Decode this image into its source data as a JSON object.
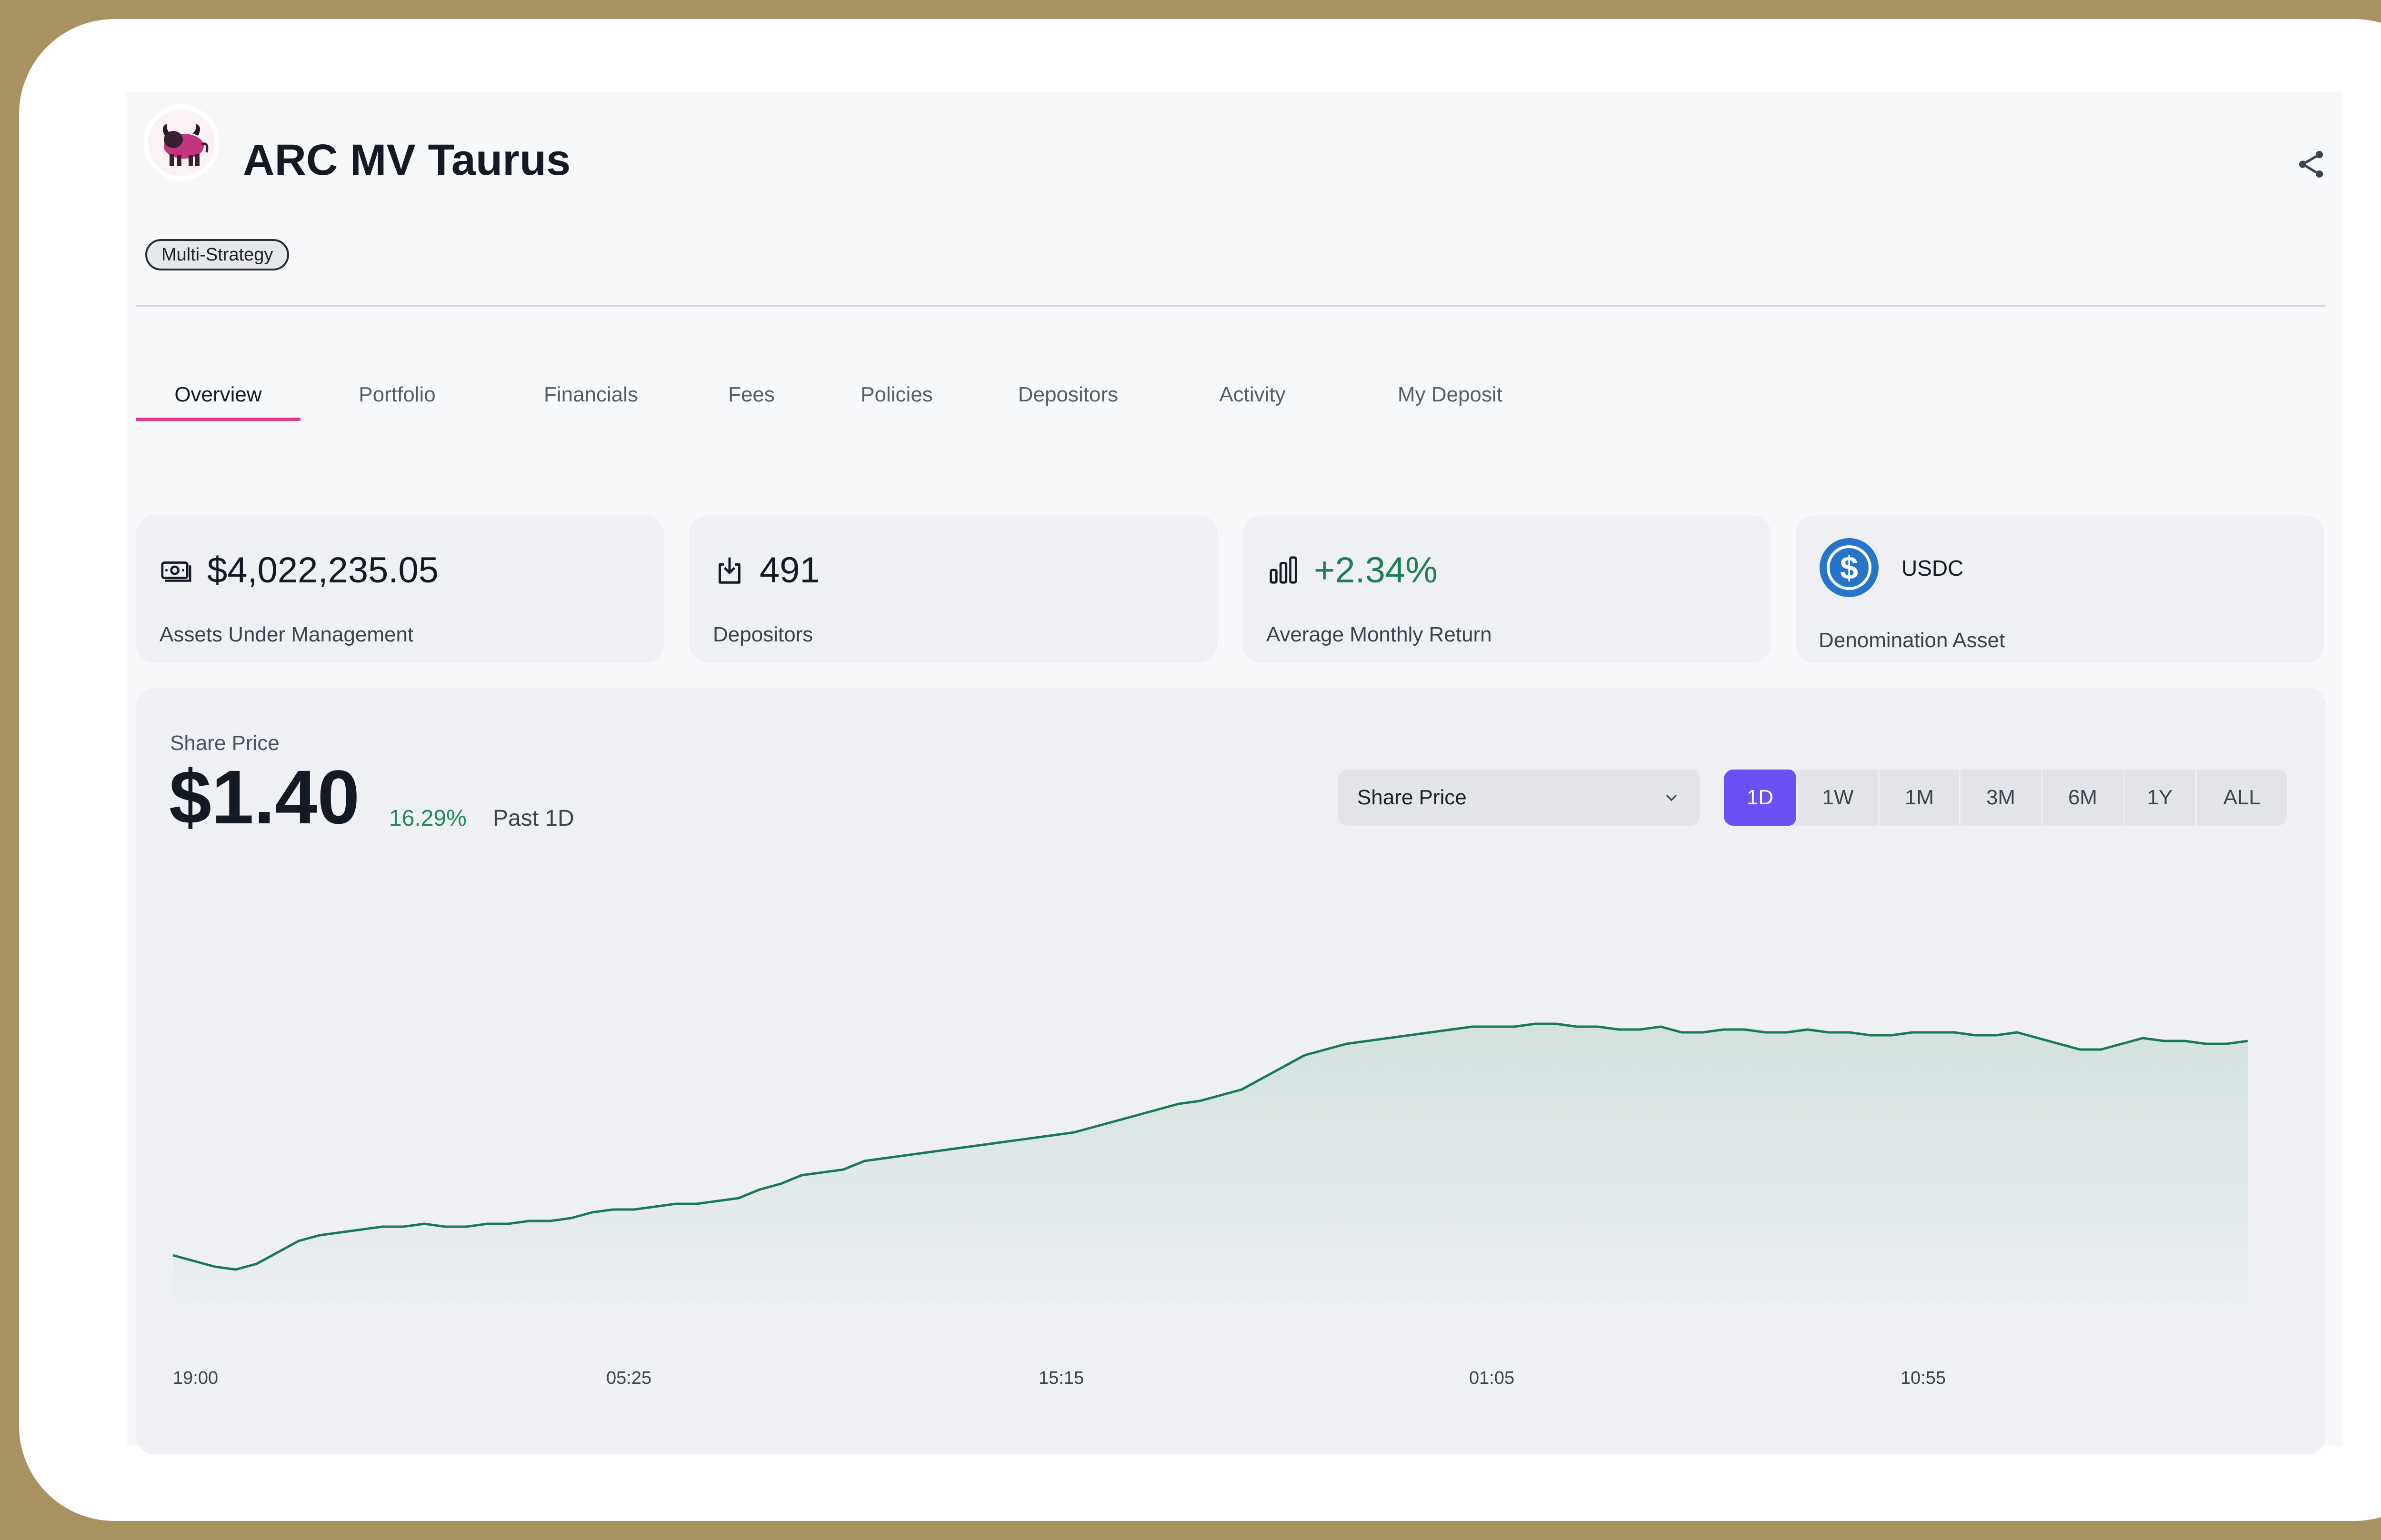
{
  "fund": {
    "name": "ARC MV Taurus",
    "tag": "Multi-Strategy",
    "logo_icon": "bull-logo-icon",
    "share_icon": "share-icon"
  },
  "tabs": [
    {
      "label": "Overview",
      "active": true
    },
    {
      "label": "Portfolio"
    },
    {
      "label": "Financials"
    },
    {
      "label": "Fees"
    },
    {
      "label": "Policies"
    },
    {
      "label": "Depositors"
    },
    {
      "label": "Activity"
    },
    {
      "label": "My Deposit"
    }
  ],
  "stats": {
    "aum": {
      "value": "$4,022,235.05",
      "label": "Assets Under Management",
      "icon": "money-icon"
    },
    "depositors": {
      "value": "491",
      "label": "Depositors",
      "icon": "deposit-icon"
    },
    "return": {
      "value": "+2.34%",
      "label": "Average Monthly Return",
      "icon": "bar-chart-icon"
    },
    "denomination": {
      "value": "USDC",
      "label": "Denomination Asset",
      "icon": "usdc-icon"
    }
  },
  "share_price": {
    "label": "Share Price",
    "value": "$1.40",
    "change": "16.29%",
    "period": "Past 1D",
    "metric_select": "Share Price",
    "ranges": [
      "1D",
      "1W",
      "1M",
      "3M",
      "6M",
      "1Y",
      "ALL"
    ],
    "active_range": "1D"
  },
  "colors": {
    "accent": "#6c4ff5",
    "tab_underline": "#e2398d",
    "positive": "#1f8a5c",
    "line": "#1a7a55"
  },
  "chart_data": {
    "type": "area",
    "x_ticks": [
      "19:00",
      "05:25",
      "15:15",
      "01:05",
      "10:55"
    ],
    "series": [
      {
        "values": [
          0.08,
          0.06,
          0.04,
          0.03,
          0.05,
          0.09,
          0.13,
          0.15,
          0.16,
          0.17,
          0.18,
          0.18,
          0.19,
          0.18,
          0.18,
          0.19,
          0.19,
          0.2,
          0.2,
          0.21,
          0.23,
          0.24,
          0.24,
          0.25,
          0.26,
          0.26,
          0.27,
          0.28,
          0.31,
          0.33,
          0.36,
          0.37,
          0.38,
          0.41,
          0.42,
          0.43,
          0.44,
          0.45,
          0.46,
          0.47,
          0.48,
          0.49,
          0.5,
          0.51,
          0.53,
          0.55,
          0.57,
          0.59,
          0.61,
          0.62,
          0.64,
          0.66,
          0.7,
          0.74,
          0.78,
          0.8,
          0.82,
          0.83,
          0.84,
          0.85,
          0.86,
          0.87,
          0.88,
          0.88,
          0.88,
          0.89,
          0.89,
          0.88,
          0.88,
          0.87,
          0.87,
          0.88,
          0.86,
          0.86,
          0.87,
          0.87,
          0.86,
          0.86,
          0.87,
          0.86,
          0.86,
          0.85,
          0.85,
          0.86,
          0.86,
          0.86,
          0.85,
          0.85,
          0.86,
          0.84,
          0.82,
          0.8,
          0.8,
          0.82,
          0.84,
          0.83,
          0.83,
          0.82,
          0.82,
          0.83
        ]
      }
    ]
  }
}
